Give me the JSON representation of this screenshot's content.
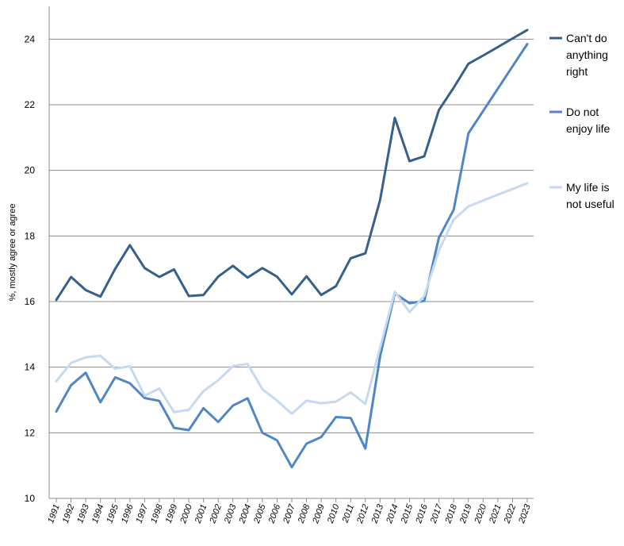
{
  "chart_data": {
    "type": "line",
    "xlabel": "",
    "ylabel": "%, mostly agree or agree",
    "ylim": [
      10,
      25
    ],
    "yticks": [
      10,
      12,
      14,
      16,
      18,
      20,
      22,
      24
    ],
    "grid": true,
    "legend_position": "right",
    "x": [
      "1991",
      "1992",
      "1993",
      "1994",
      "1995",
      "1996",
      "1997",
      "1998",
      "1999",
      "2000",
      "2001",
      "2002",
      "2003",
      "2004",
      "2005",
      "2006",
      "2007",
      "2008",
      "2009",
      "2010",
      "2011",
      "2012",
      "2013",
      "2014",
      "2015",
      "2016",
      "2017",
      "2018",
      "2019",
      "2020",
      "2021",
      "2022",
      "2023"
    ],
    "series": [
      {
        "name": "Can't do anything right",
        "legend_lines": [
          "Can't do",
          "anything",
          "right"
        ],
        "color": "#355f8d",
        "values": [
          16.05,
          16.75,
          16.35,
          16.15,
          17.0,
          17.72,
          17.02,
          16.75,
          16.98,
          16.17,
          16.2,
          16.76,
          17.09,
          16.73,
          17.02,
          16.76,
          16.22,
          16.77,
          16.2,
          16.47,
          17.32,
          17.47,
          19.1,
          21.6,
          20.28,
          20.43,
          21.84,
          22.52,
          23.25,
          23.5,
          23.76,
          24.02,
          24.28
        ]
      },
      {
        "name": "Do not enjoy life",
        "legend_lines": [
          "Do not",
          "enjoy life"
        ],
        "color": "#4f86c8",
        "values": [
          12.65,
          13.45,
          13.83,
          12.93,
          13.69,
          13.51,
          13.06,
          12.97,
          12.15,
          12.08,
          12.75,
          12.33,
          12.83,
          13.05,
          12.0,
          11.77,
          10.95,
          11.67,
          11.87,
          12.48,
          12.45,
          11.52,
          14.33,
          16.25,
          15.95,
          16.02,
          17.95,
          18.8,
          21.13,
          21.81,
          22.49,
          23.17,
          23.85
        ]
      },
      {
        "name": "My life is not useful",
        "legend_lines": [
          "My life is",
          "not useful"
        ],
        "color": "#c5d9f1",
        "values": [
          13.57,
          14.13,
          14.3,
          14.35,
          13.95,
          14.03,
          13.13,
          13.35,
          12.63,
          12.7,
          13.27,
          13.6,
          14.03,
          14.1,
          13.33,
          12.98,
          12.58,
          12.98,
          12.9,
          12.95,
          13.23,
          12.88,
          14.6,
          16.3,
          15.68,
          16.17,
          17.56,
          18.5,
          18.9,
          19.08,
          19.26,
          19.43,
          19.61
        ]
      }
    ]
  }
}
